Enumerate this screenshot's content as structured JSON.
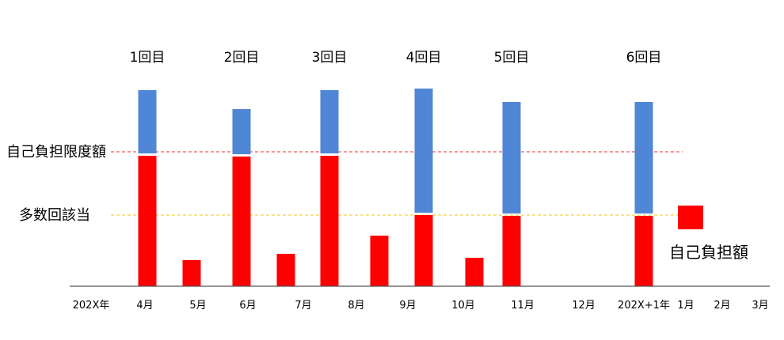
{
  "chart_data": {
    "type": "bar",
    "stacked": true,
    "colors": {
      "self_pay": "#ff0000",
      "excess": "#4f86d6",
      "limit_line": "#e83030",
      "multi_line": "#f0c419",
      "axis": "#555555"
    },
    "x_labels": [
      "202X年",
      "4月",
      "5月",
      "6月",
      "7月",
      "8月",
      "9月",
      "10月",
      "11月",
      "12月",
      "202X+1年",
      "1月",
      "2月",
      "3月"
    ],
    "bars": [
      {
        "label": "1回目",
        "self_pay": 165,
        "excess": 80
      },
      {
        "self_pay": 33,
        "excess": 0
      },
      {
        "label": "2回目",
        "self_pay": 164,
        "excess": 57
      },
      {
        "self_pay": 41,
        "excess": 0
      },
      {
        "label": "3回目",
        "self_pay": 165,
        "excess": 80
      },
      {
        "self_pay": 64,
        "excess": 0
      },
      {
        "label": "4回目",
        "self_pay": 90,
        "excess": 157
      },
      {
        "self_pay": 36,
        "excess": 0
      },
      {
        "label": "5回目",
        "self_pay": 89,
        "excess": 141
      },
      {
        "label": "6回目",
        "self_pay": 89,
        "excess": 141
      }
    ],
    "reference_lines": [
      {
        "name": "自己負担限度額",
        "value": 170,
        "style": "dashed",
        "color": "#e83030"
      },
      {
        "name": "多数回該当",
        "value": 90,
        "style": "dashed",
        "color": "#f0c419"
      }
    ],
    "legend": [
      {
        "label": "自己負担額",
        "color": "#ff0000"
      }
    ],
    "ylim": [
      0,
      260
    ]
  }
}
